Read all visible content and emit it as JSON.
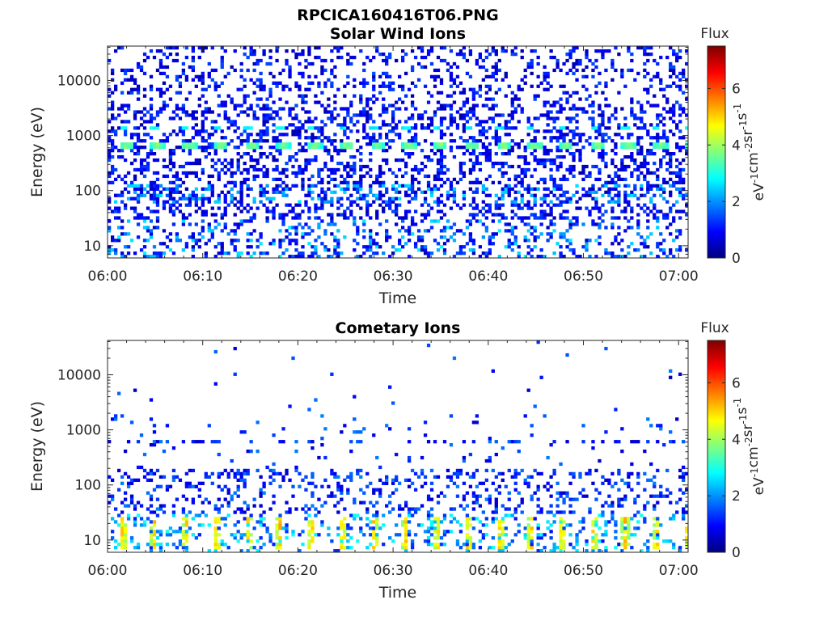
{
  "figure": {
    "title": "RPCICA160416T06.PNG"
  },
  "chart_data": [
    {
      "type": "heatmap",
      "title": "Solar Wind Ions",
      "xlabel": "Time",
      "ylabel": "Energy (eV)",
      "x_ticks": [
        "06:00",
        "06:10",
        "06:20",
        "06:30",
        "06:40",
        "06:50",
        "07:00"
      ],
      "x_range_minutes": [
        0,
        61
      ],
      "y_scale": "log",
      "y_ticks": [
        10,
        100,
        1000,
        10000
      ],
      "y_tick_labels": [
        "10",
        "100",
        "1000",
        "10000"
      ],
      "ylim": [
        6,
        42000
      ],
      "colorbar": {
        "title": "Flux",
        "label": "eV-1cm-2sr-1s-1",
        "ticks": [
          0,
          2,
          4,
          6
        ],
        "range": [
          0,
          7.5
        ],
        "colormap": "jet"
      },
      "features": [
        {
          "description": "periodic peak",
          "energy_eV": 650,
          "flux": 3.5,
          "period_min": 3.3,
          "first_min": 2.0
        },
        {
          "description": "secondary peak",
          "energy_eV": 1400,
          "flux": 2.6,
          "period_min": 3.3,
          "first_min": 1.6
        },
        {
          "description": "background",
          "energy_range_eV": [
            30,
            40000
          ],
          "flux_range": [
            0.3,
            1.4
          ]
        },
        {
          "description": "low-energy band",
          "energy_range_eV": [
            6,
            30
          ],
          "flux_range": [
            0.5,
            2.5
          ]
        }
      ]
    },
    {
      "type": "heatmap",
      "title": "Cometary Ions",
      "xlabel": "Time",
      "ylabel": "Energy (eV)",
      "x_ticks": [
        "06:00",
        "06:10",
        "06:20",
        "06:30",
        "06:40",
        "06:50",
        "07:00"
      ],
      "x_range_minutes": [
        0,
        61
      ],
      "y_scale": "log",
      "y_ticks": [
        10,
        100,
        1000,
        10000
      ],
      "y_tick_labels": [
        "10",
        "100",
        "1000",
        "10000"
      ],
      "ylim": [
        6,
        42000
      ],
      "colorbar": {
        "title": "Flux",
        "label": "eV-1cm-2sr-1s-1",
        "ticks": [
          0,
          2,
          4,
          6
        ],
        "range": [
          0,
          7.5
        ],
        "colormap": "jet"
      },
      "features": [
        {
          "description": "low-energy bursts",
          "energy_range_eV": [
            7,
            28
          ],
          "flux": 4.6,
          "period_min": 3.3,
          "first_min": 1.6
        },
        {
          "description": "mid-energy scatter",
          "energy_range_eV": [
            30,
            200
          ],
          "flux_range": [
            0.4,
            2.2
          ]
        },
        {
          "description": "band near 600 eV",
          "energy_eV": 600,
          "flux": 1.3
        },
        {
          "description": "sparse high energy",
          "energy_range_eV": [
            200,
            30000
          ],
          "flux_range": [
            0.8,
            1.6
          ]
        }
      ]
    }
  ]
}
